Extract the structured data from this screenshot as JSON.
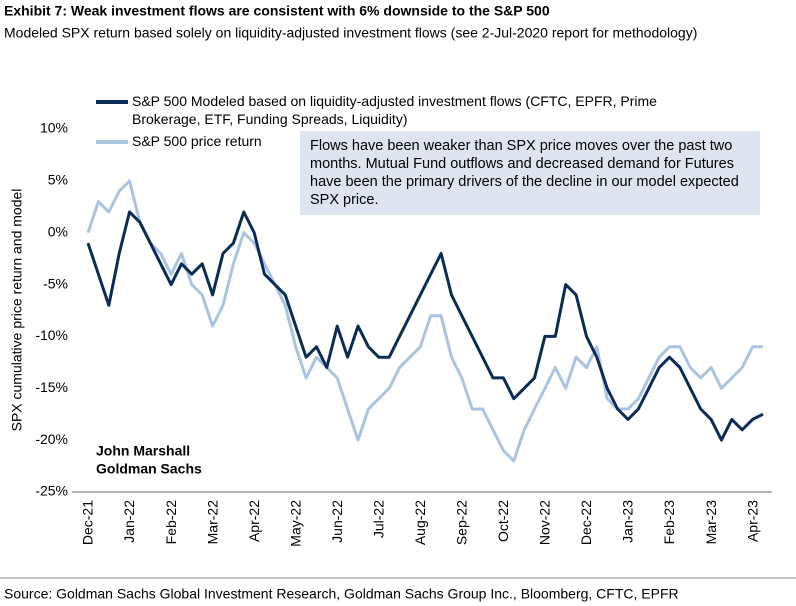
{
  "chart_data": {
    "type": "line",
    "title": "Exhibit 7: Weak investment flows are consistent with 6% downside to the S&P 500",
    "subtitle": "Modeled SPX return based solely on liquidity-adjusted investment flows (see 2-Jul-2020 report for methodology)",
    "y_label": "SPX cumulative price return and model",
    "annotation": "Flows have been weaker than SPX price moves over the past two months. Mutual Fund outflows and decreased demand for Futures have been the primary drivers of the decline in our model expected SPX price.",
    "watermark": [
      "John Marshall",
      "Goldman Sachs"
    ],
    "source": "Source: Goldman Sachs Global Investment Research, Goldman Sachs Group Inc., Bloomberg, CFTC, EPFR",
    "categories": [
      "Dec-21",
      null,
      null,
      null,
      "Jan-22",
      null,
      null,
      null,
      "Feb-22",
      null,
      null,
      null,
      "Mar-22",
      null,
      null,
      null,
      "Apr-22",
      null,
      null,
      null,
      "May-22",
      null,
      null,
      null,
      "Jun-22",
      null,
      null,
      null,
      "Jul-22",
      null,
      null,
      null,
      "Aug-22",
      null,
      null,
      null,
      "Sep-22",
      null,
      null,
      null,
      "Oct-22",
      null,
      null,
      null,
      "Nov-22",
      null,
      null,
      null,
      "Dec-22",
      null,
      null,
      null,
      "Jan-23",
      null,
      null,
      null,
      "Feb-23",
      null,
      null,
      null,
      "Mar-23",
      null,
      null,
      null,
      "Apr-23",
      null
    ],
    "series": [
      {
        "name": "S&P 500 Modeled based on liquidity-adjusted investment flows (CFTC, EPFR, Prime Brokerage, ETF, Funding Spreads, Liquidity)",
        "color": "#0b2d55",
        "values": [
          -1,
          -4,
          -7,
          -2,
          2,
          1,
          -1,
          -3,
          -5,
          -3,
          -4,
          -3,
          -6,
          -2,
          -1,
          2,
          0,
          -4,
          -5,
          -6,
          -9,
          -12,
          -11,
          -13,
          -9,
          -12,
          -9,
          -11,
          -12,
          -12,
          -10,
          -8,
          -6,
          -4,
          -2,
          -6,
          -8,
          -10,
          -12,
          -14,
          -14,
          -16,
          -15,
          -14,
          -10,
          -10,
          -5,
          -6,
          -10,
          -12,
          -15,
          -17,
          -18,
          -17,
          -15,
          -13,
          -12,
          -13,
          -15,
          -17,
          -18,
          -20,
          -18,
          -19,
          -18,
          -17.5
        ]
      },
      {
        "name": "S&P 500 price return",
        "color": "#a9c4e0",
        "values": [
          0,
          3,
          2,
          4,
          5,
          1,
          -1,
          -2,
          -4,
          -2,
          -5,
          -6,
          -9,
          -7,
          -3,
          0,
          -1,
          -3,
          -5,
          -7,
          -11,
          -14,
          -12,
          -13,
          -14,
          -17,
          -20,
          -17,
          -16,
          -15,
          -13,
          -12,
          -11,
          -8,
          -8,
          -12,
          -14,
          -17,
          -17,
          -19,
          -21,
          -22,
          -19,
          -17,
          -15,
          -13,
          -15,
          -12,
          -13,
          -11,
          -16,
          -17,
          -17,
          -16,
          -14,
          -12,
          -11,
          -11,
          -13,
          -14,
          -13,
          -15,
          -14,
          -13,
          -11,
          -11
        ]
      }
    ],
    "ylim": [
      -25,
      10
    ],
    "yticks": [
      {
        "value": 10,
        "label": "10%"
      },
      {
        "value": 5,
        "label": "5%"
      },
      {
        "value": 0,
        "label": "0%"
      },
      {
        "value": -5,
        "label": "-5%"
      },
      {
        "value": -10,
        "label": "-10%"
      },
      {
        "value": -15,
        "label": "-15%"
      },
      {
        "value": -20,
        "label": "-20%"
      },
      {
        "value": -25,
        "label": "-25%"
      }
    ],
    "grid": false
  }
}
